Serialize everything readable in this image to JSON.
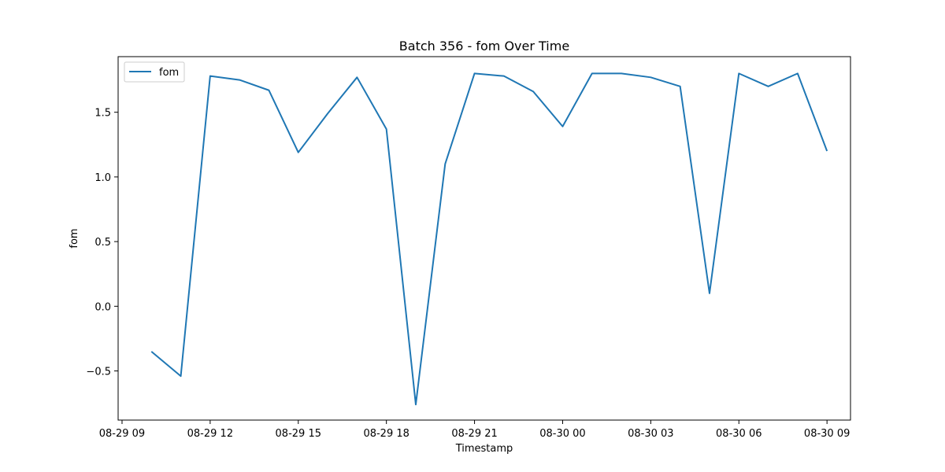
{
  "chart_data": {
    "type": "line",
    "title": "Batch 356 - fom Over Time",
    "xlabel": "Timestamp",
    "ylabel": "fom",
    "x_tick_labels": [
      "08-29 09",
      "08-29 12",
      "08-29 15",
      "08-29 18",
      "08-29 21",
      "08-30 00",
      "08-30 03",
      "08-30 06",
      "08-30 09"
    ],
    "x_ticks": [
      "2024-08-29 09:00",
      "2024-08-29 12:00",
      "2024-08-29 15:00",
      "2024-08-29 18:00",
      "2024-08-29 21:00",
      "2024-08-30 00:00",
      "2024-08-30 03:00",
      "2024-08-30 06:00",
      "2024-08-30 09:00"
    ],
    "y_ticks": [
      -0.5,
      0.0,
      0.5,
      1.0,
      1.5
    ],
    "y_tick_labels": [
      "−0.5",
      "0.0",
      "0.5",
      "1.0",
      "1.5"
    ],
    "xlim": [
      "2024-08-29 08:52",
      "2024-08-30 09:48"
    ],
    "ylim": [
      -0.88,
      1.93
    ],
    "grid": false,
    "legend": {
      "placement": "top-left"
    },
    "colors": {
      "series": "#1f77b4"
    },
    "series": [
      {
        "name": "fom",
        "x": [
          "2024-08-29 10:00",
          "2024-08-29 11:00",
          "2024-08-29 12:00",
          "2024-08-29 13:00",
          "2024-08-29 14:00",
          "2024-08-29 15:00",
          "2024-08-29 16:00",
          "2024-08-29 17:00",
          "2024-08-29 18:00",
          "2024-08-29 19:00",
          "2024-08-29 20:00",
          "2024-08-29 21:00",
          "2024-08-29 22:00",
          "2024-08-29 23:00",
          "2024-08-30 00:00",
          "2024-08-30 01:00",
          "2024-08-30 02:00",
          "2024-08-30 03:00",
          "2024-08-30 04:00",
          "2024-08-30 05:00",
          "2024-08-30 06:00",
          "2024-08-30 07:00",
          "2024-08-30 08:00",
          "2024-08-30 09:00"
        ],
        "values": [
          -0.35,
          -0.54,
          1.78,
          1.75,
          1.67,
          1.19,
          1.49,
          1.77,
          1.37,
          -0.76,
          1.1,
          1.8,
          1.78,
          1.66,
          1.39,
          1.8,
          1.8,
          1.77,
          1.7,
          0.1,
          1.8,
          1.7,
          1.8,
          1.2
        ]
      }
    ]
  }
}
